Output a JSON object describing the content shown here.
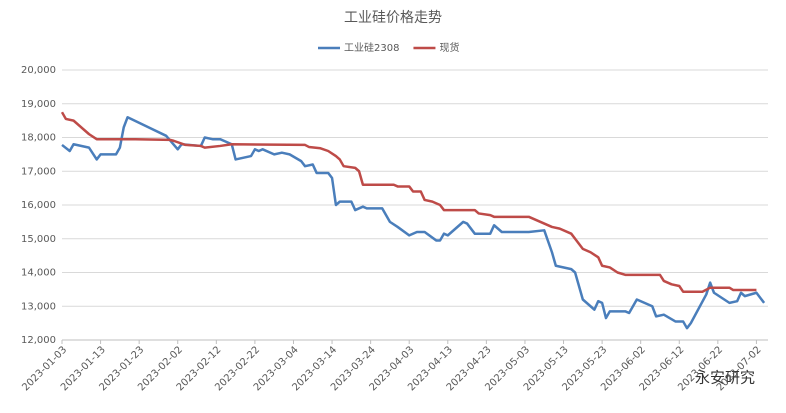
{
  "chart_data": {
    "type": "line",
    "title": "工业硅价格走势",
    "watermark": "永安研究",
    "ylim": [
      12000,
      20000
    ],
    "yticks": [
      {
        "value": 12000,
        "label": "12,000"
      },
      {
        "value": 13000,
        "label": "13,000"
      },
      {
        "value": 14000,
        "label": "14,000"
      },
      {
        "value": 15000,
        "label": "15,000"
      },
      {
        "value": 16000,
        "label": "16,000"
      },
      {
        "value": 17000,
        "label": "17,000"
      },
      {
        "value": 18000,
        "label": "18,000"
      },
      {
        "value": 19000,
        "label": "19,000"
      },
      {
        "value": 20000,
        "label": "20,000"
      }
    ],
    "xlim": [
      "2023-01-03",
      "2023-07-05"
    ],
    "xticks": [
      "2023-01-03",
      "2023-01-13",
      "2023-01-23",
      "2023-02-02",
      "2023-02-12",
      "2023-02-22",
      "2023-03-04",
      "2023-03-14",
      "2023-03-24",
      "2023-04-03",
      "2023-04-13",
      "2023-04-23",
      "2023-05-03",
      "2023-05-13",
      "2023-05-23",
      "2023-06-02",
      "2023-06-12",
      "2023-06-22",
      "2023-07-02"
    ],
    "grid": true,
    "series": [
      {
        "name": "工业硅2308",
        "color": "#4a7ebb",
        "x": [
          "2023-01-03",
          "2023-01-05",
          "2023-01-06",
          "2023-01-10",
          "2023-01-12",
          "2023-01-13",
          "2023-01-17",
          "2023-01-18",
          "2023-01-19",
          "2023-01-20",
          "2023-01-30",
          "2023-02-02",
          "2023-02-03",
          "2023-02-08",
          "2023-02-09",
          "2023-02-11",
          "2023-02-13",
          "2023-02-14",
          "2023-02-16",
          "2023-02-17",
          "2023-02-21",
          "2023-02-22",
          "2023-02-23",
          "2023-02-24",
          "2023-02-27",
          "2023-03-01",
          "2023-03-03",
          "2023-03-06",
          "2023-03-07",
          "2023-03-09",
          "2023-03-10",
          "2023-03-13",
          "2023-03-14",
          "2023-03-15",
          "2023-03-16",
          "2023-03-19",
          "2023-03-20",
          "2023-03-22",
          "2023-03-23",
          "2023-03-27",
          "2023-03-28",
          "2023-03-29",
          "2023-03-31",
          "2023-04-03",
          "2023-04-05",
          "2023-04-07",
          "2023-04-10",
          "2023-04-11",
          "2023-04-12",
          "2023-04-13",
          "2023-04-17",
          "2023-04-18",
          "2023-04-20",
          "2023-04-24",
          "2023-04-25",
          "2023-04-26",
          "2023-04-27",
          "2023-05-03",
          "2023-05-04",
          "2023-05-08",
          "2023-05-10",
          "2023-05-11",
          "2023-05-15",
          "2023-05-16",
          "2023-05-18",
          "2023-05-21",
          "2023-05-22",
          "2023-05-23",
          "2023-05-24",
          "2023-05-25",
          "2023-05-29",
          "2023-05-30",
          "2023-06-01",
          "2023-06-05",
          "2023-06-06",
          "2023-06-08",
          "2023-06-11",
          "2023-06-13",
          "2023-06-14",
          "2023-06-15",
          "2023-06-19",
          "2023-06-20",
          "2023-06-21",
          "2023-06-25",
          "2023-06-27",
          "2023-06-28",
          "2023-06-29",
          "2023-07-02",
          "2023-07-04"
        ],
        "values": [
          17780,
          17600,
          17800,
          17700,
          17350,
          17500,
          17500,
          17700,
          18300,
          18600,
          18050,
          17650,
          17800,
          17750,
          18000,
          17950,
          17950,
          17900,
          17800,
          17350,
          17450,
          17650,
          17600,
          17650,
          17500,
          17550,
          17500,
          17300,
          17150,
          17200,
          16950,
          16950,
          16800,
          16000,
          16100,
          16100,
          15850,
          15950,
          15900,
          15900,
          15700,
          15500,
          15350,
          15100,
          15200,
          15200,
          14950,
          14950,
          15150,
          15100,
          15500,
          15450,
          15150,
          15150,
          15400,
          15300,
          15200,
          15200,
          15200,
          15250,
          14600,
          14200,
          14100,
          14000,
          13200,
          12900,
          13150,
          13100,
          12650,
          12850,
          12850,
          12800,
          13200,
          13000,
          12700,
          12750,
          12550,
          12550,
          12350,
          12500,
          13350,
          13700,
          13400,
          13100,
          13150,
          13400,
          13300,
          13400,
          13100
        ]
      },
      {
        "name": "现货",
        "color": "#be4b48",
        "x": [
          "2023-01-03",
          "2023-01-04",
          "2023-01-06",
          "2023-01-09",
          "2023-01-10",
          "2023-01-12",
          "2023-01-22",
          "2023-01-31",
          "2023-02-01",
          "2023-02-04",
          "2023-02-08",
          "2023-02-09",
          "2023-02-13",
          "2023-02-16",
          "2023-03-07",
          "2023-03-08",
          "2023-03-11",
          "2023-03-13",
          "2023-03-15",
          "2023-03-16",
          "2023-03-17",
          "2023-03-20",
          "2023-03-21",
          "2023-03-22",
          "2023-03-30",
          "2023-03-31",
          "2023-04-03",
          "2023-04-04",
          "2023-04-06",
          "2023-04-07",
          "2023-04-09",
          "2023-04-11",
          "2023-04-12",
          "2023-04-20",
          "2023-04-21",
          "2023-04-24",
          "2023-04-25",
          "2023-05-04",
          "2023-05-06",
          "2023-05-08",
          "2023-05-10",
          "2023-05-12",
          "2023-05-15",
          "2023-05-16",
          "2023-05-18",
          "2023-05-20",
          "2023-05-22",
          "2023-05-23",
          "2023-05-25",
          "2023-05-27",
          "2023-05-29",
          "2023-06-07",
          "2023-06-08",
          "2023-06-10",
          "2023-06-12",
          "2023-06-13",
          "2023-06-18",
          "2023-06-20",
          "2023-06-25",
          "2023-06-26",
          "2023-07-02"
        ],
        "values": [
          18750,
          18550,
          18500,
          18200,
          18100,
          17950,
          17950,
          17930,
          17900,
          17780,
          17750,
          17700,
          17750,
          17800,
          17780,
          17720,
          17680,
          17600,
          17450,
          17350,
          17150,
          17100,
          17000,
          16600,
          16600,
          16550,
          16550,
          16400,
          16400,
          16150,
          16100,
          16000,
          15850,
          15850,
          15750,
          15700,
          15650,
          15650,
          15550,
          15450,
          15350,
          15300,
          15150,
          15000,
          14700,
          14600,
          14450,
          14200,
          14150,
          14000,
          13930,
          13930,
          13750,
          13650,
          13600,
          13430,
          13430,
          13550,
          13550,
          13480,
          13480
        ]
      }
    ]
  }
}
